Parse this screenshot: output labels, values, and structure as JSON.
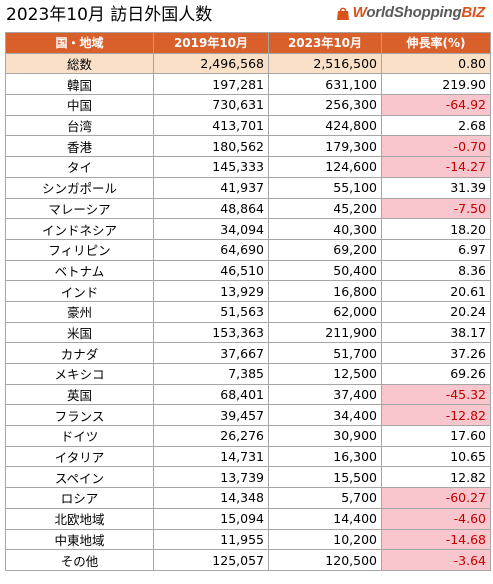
{
  "title": "2023年10月 訪日外国人数",
  "brand": {
    "w": "W",
    "rest": "orldShopping",
    "biz": "BIZ"
  },
  "colors": {
    "header_bg": "#d9602b",
    "total_bg": "#fbe0c8",
    "negative_bg": "#f8c6cc",
    "negative_text": "#c00000"
  },
  "chart_data": {
    "type": "table",
    "columns": [
      "国・地域",
      "2019年10月",
      "2023年10月",
      "伸長率(%)"
    ],
    "rows": [
      [
        "総数",
        "2,496,568",
        "2,516,500",
        "0.80"
      ],
      [
        "韓国",
        "197,281",
        "631,100",
        "219.90"
      ],
      [
        "中国",
        "730,631",
        "256,300",
        "-64.92"
      ],
      [
        "台湾",
        "413,701",
        "424,800",
        "2.68"
      ],
      [
        "香港",
        "180,562",
        "179,300",
        "-0.70"
      ],
      [
        "タイ",
        "145,333",
        "124,600",
        "-14.27"
      ],
      [
        "シンガポール",
        "41,937",
        "55,100",
        "31.39"
      ],
      [
        "マレーシア",
        "48,864",
        "45,200",
        "-7.50"
      ],
      [
        "インドネシア",
        "34,094",
        "40,300",
        "18.20"
      ],
      [
        "フィリピン",
        "64,690",
        "69,200",
        "6.97"
      ],
      [
        "ベトナム",
        "46,510",
        "50,400",
        "8.36"
      ],
      [
        "インド",
        "13,929",
        "16,800",
        "20.61"
      ],
      [
        "豪州",
        "51,563",
        "62,000",
        "20.24"
      ],
      [
        "米国",
        "153,363",
        "211,900",
        "38.17"
      ],
      [
        "カナダ",
        "37,667",
        "51,700",
        "37.26"
      ],
      [
        "メキシコ",
        "7,385",
        "12,500",
        "69.26"
      ],
      [
        "英国",
        "68,401",
        "37,400",
        "-45.32"
      ],
      [
        "フランス",
        "39,457",
        "34,400",
        "-12.82"
      ],
      [
        "ドイツ",
        "26,276",
        "30,900",
        "17.60"
      ],
      [
        "イタリア",
        "14,731",
        "16,300",
        "10.65"
      ],
      [
        "スペイン",
        "13,739",
        "15,500",
        "12.82"
      ],
      [
        "ロシア",
        "14,348",
        "5,700",
        "-60.27"
      ],
      [
        "北欧地域",
        "15,094",
        "14,400",
        "-4.60"
      ],
      [
        "中東地域",
        "11,955",
        "10,200",
        "-14.68"
      ],
      [
        "その他",
        "125,057",
        "120,500",
        "-3.64"
      ]
    ]
  }
}
